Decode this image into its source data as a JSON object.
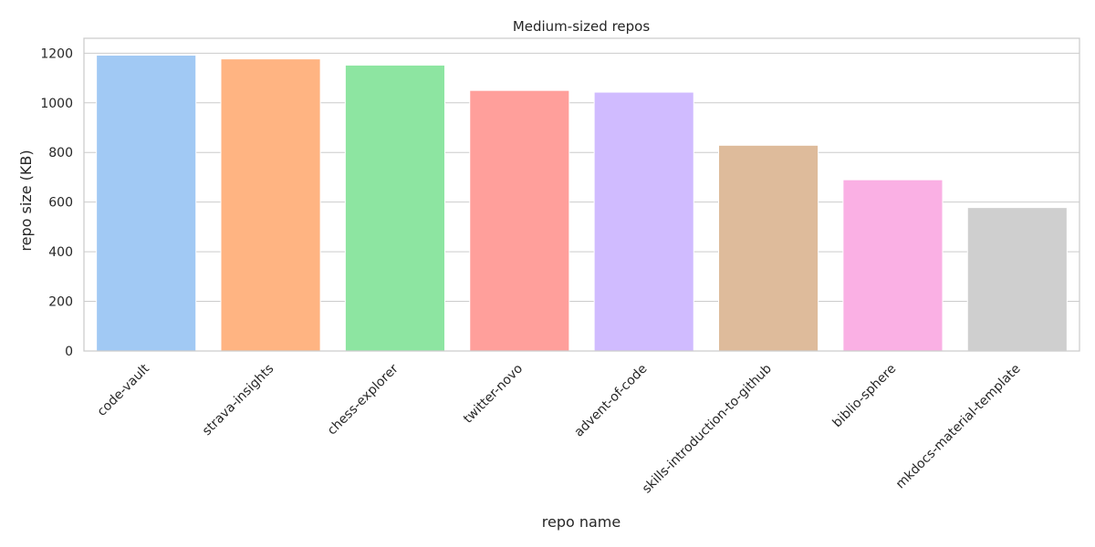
{
  "chart_data": {
    "type": "bar",
    "title": "Medium-sized repos",
    "xlabel": "repo name",
    "ylabel": "repo size (KB)",
    "categories": [
      "code-vault",
      "strava-insights",
      "chess-explorer",
      "twitter-novo",
      "advent-of-code",
      "skills-introduction-to-github",
      "biblio-sphere",
      "mkdocs-material-template"
    ],
    "values": [
      1192,
      1177,
      1152,
      1050,
      1043,
      829,
      690,
      578
    ],
    "colors": [
      "#a1c9f4",
      "#ffb482",
      "#8de5a1",
      "#ff9f9b",
      "#d0bbff",
      "#debb9b",
      "#fab0e4",
      "#cfcfcf"
    ],
    "ylim": [
      0,
      1260
    ],
    "yticks": [
      0,
      200,
      400,
      600,
      800,
      1000,
      1200
    ],
    "grid": true,
    "legend": "none"
  }
}
